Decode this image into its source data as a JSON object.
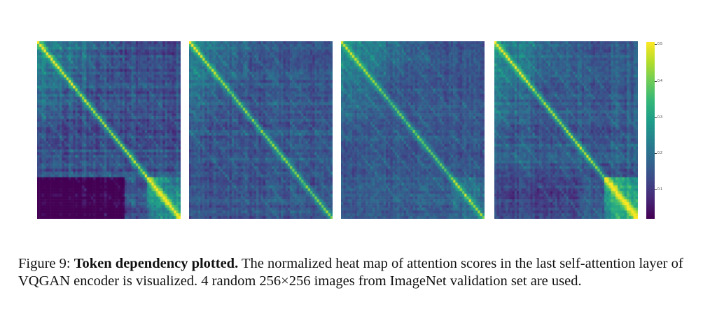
{
  "figure": {
    "label": "Figure 9:",
    "title": "Token dependency plotted.",
    "text": " The normalized heat map of attention scores in the last self-attention layer of VQGAN encoder is visualized. 4 random 256×256 images from ImageNet validation set are used."
  },
  "colorbar": {
    "ticks": [
      "0.5",
      "0.4",
      "0.3",
      "0.2",
      "0.1"
    ],
    "range": [
      0.03,
      0.5
    ],
    "colormap": "viridis"
  },
  "chart_data": {
    "type": "heatmap",
    "panel_count": 4,
    "colormap": "viridis",
    "value_range": [
      0.03,
      0.5
    ]
  }
}
